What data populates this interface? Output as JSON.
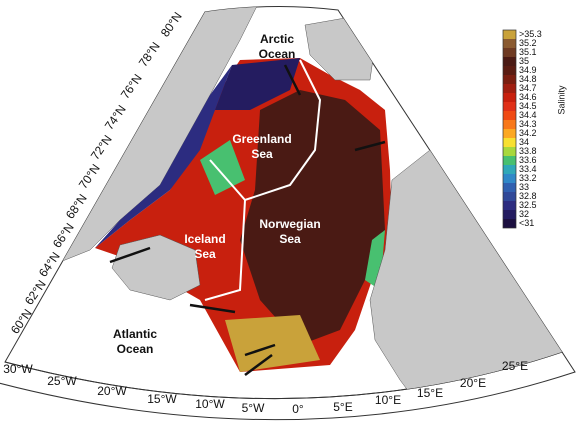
{
  "regions": [
    {
      "lines": [
        "Arctic",
        "Ocean"
      ],
      "color": "#111"
    },
    {
      "lines": [
        "Greenland",
        "Sea"
      ],
      "color": "#fff"
    },
    {
      "lines": [
        "Iceland",
        "Sea"
      ],
      "color": "#fff"
    },
    {
      "lines": [
        "Norwegian",
        "Sea"
      ],
      "color": "#fff"
    },
    {
      "lines": [
        "Atlantic",
        "Ocean"
      ],
      "color": "#111"
    }
  ],
  "lat_labels": [
    "80°N",
    "78°N",
    "76°N",
    "74°N",
    "72°N",
    "70°N",
    "68°N",
    "66°N",
    "64°N",
    "62°N",
    "60°N"
  ],
  "lon_labels": [
    "30°W",
    "25°W",
    "20°W",
    "15°W",
    "10°W",
    "5°W",
    "0°",
    "5°E",
    "10°E",
    "15°E",
    "20°E",
    "25°E"
  ],
  "colorbar": {
    "title": "Salinity",
    "labels": [
      ">35.3",
      "35.2",
      "35.1",
      "35",
      "34.9",
      "34.8",
      "34.7",
      "34.6",
      "34.5",
      "34.4",
      "34.3",
      "34.2",
      "34",
      "33.8",
      "33.6",
      "33.4",
      "33.2",
      "33",
      "32.8",
      "32.5",
      "32",
      "<31"
    ],
    "colors": [
      "#c9a23a",
      "#8a5a30",
      "#6e3a22",
      "#4a1a14",
      "#5a1c12",
      "#7a1e10",
      "#a01e10",
      "#c8200e",
      "#e03018",
      "#f04a14",
      "#f8781a",
      "#fca822",
      "#f8e030",
      "#a8d83c",
      "#48c070",
      "#30a8b8",
      "#3088c8",
      "#3060b0",
      "#304898",
      "#2c2c80",
      "#241c60",
      "#1c1040"
    ]
  }
}
